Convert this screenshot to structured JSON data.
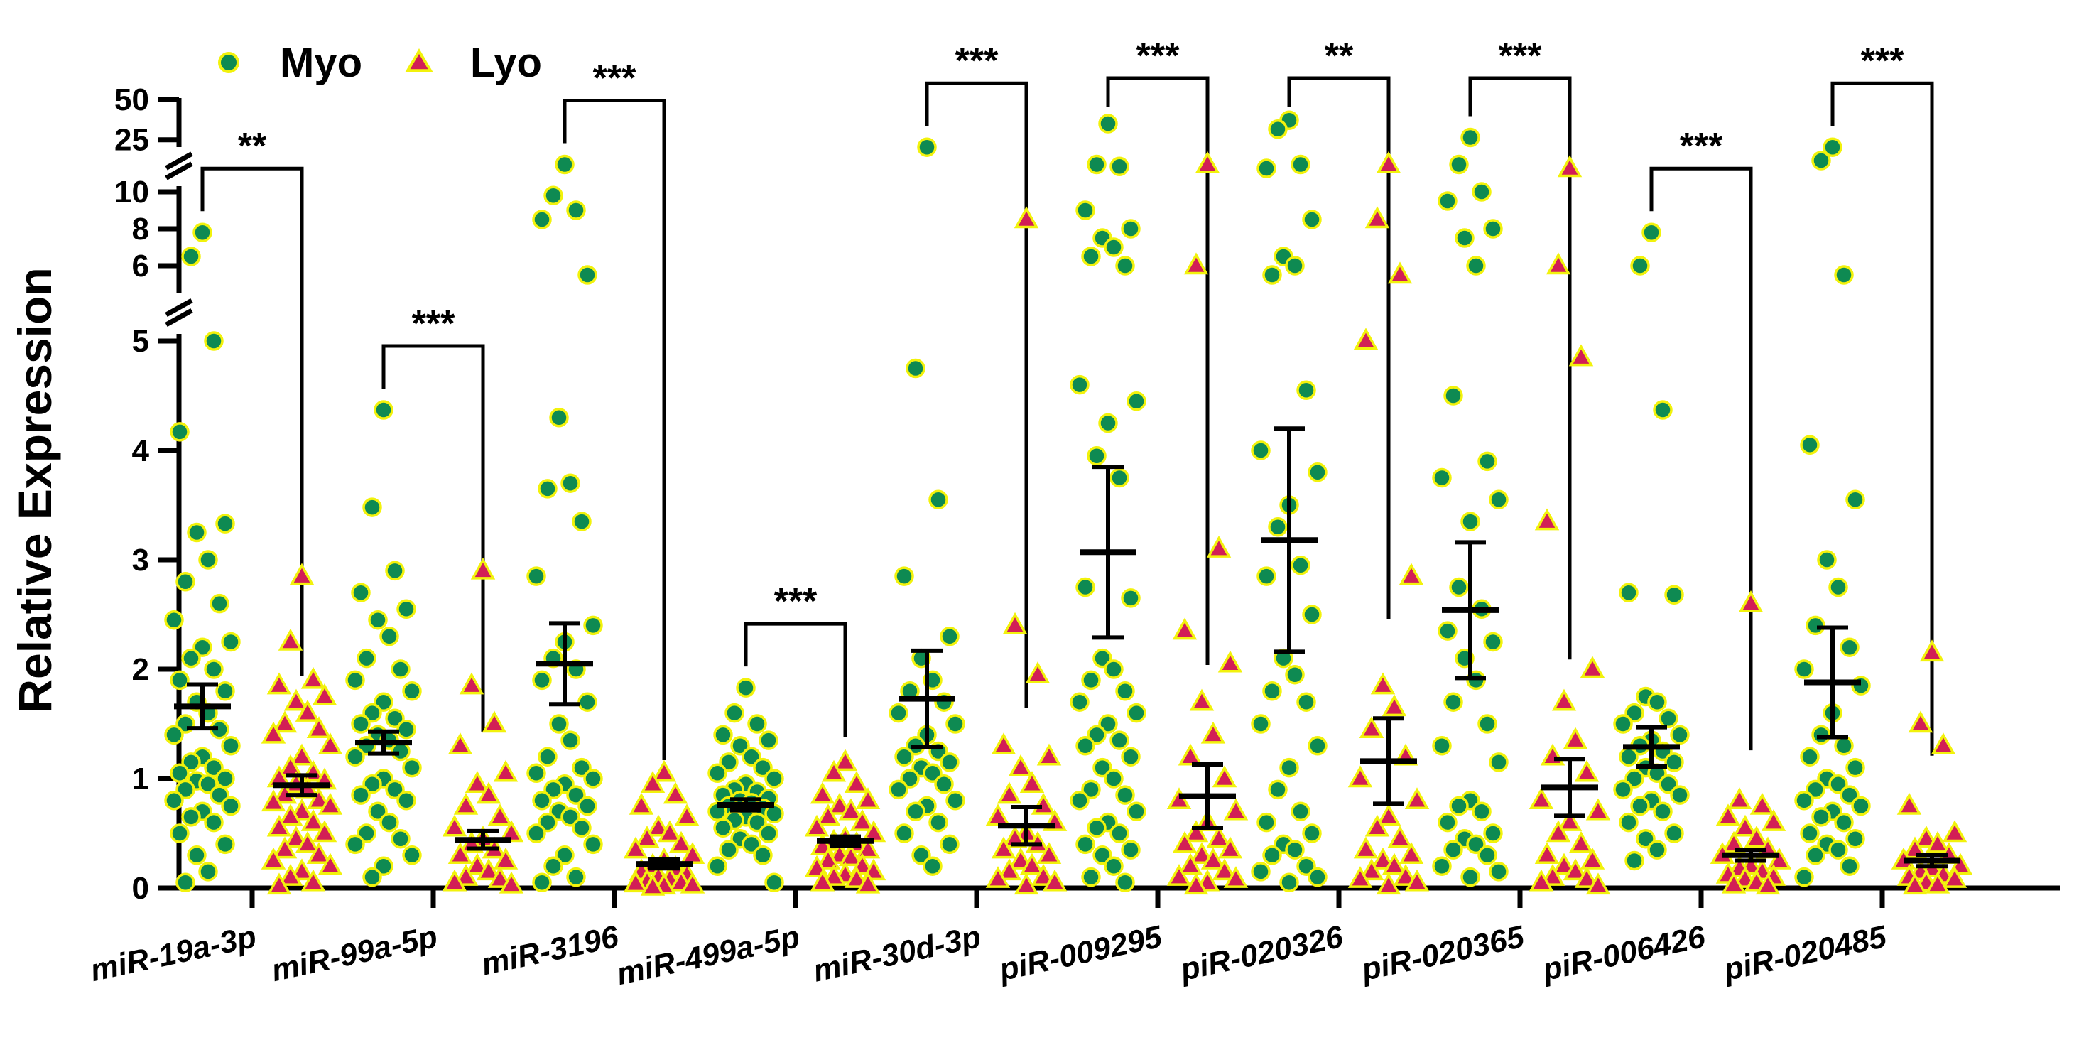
{
  "chart_data": {
    "type": "scatter",
    "subtype": "grouped dot plot with mean and SEM error bars, broken y-axis",
    "title": "",
    "xlabel": "",
    "ylabel": "Relative Expression",
    "ylim": [
      0,
      50
    ],
    "y_axis_segments": [
      {
        "range": [
          0,
          5
        ],
        "ticks": [
          0,
          1,
          2,
          3,
          4,
          5
        ]
      },
      {
        "range": [
          5,
          10
        ],
        "ticks": [
          6,
          8,
          10
        ]
      },
      {
        "range": [
          20,
          50
        ],
        "ticks": [
          25,
          50
        ]
      }
    ],
    "legend": {
      "position": "top-left",
      "entries": [
        {
          "name": "Myo",
          "marker": "circle",
          "fill": "#0E8A52",
          "edge": "#F2F20C"
        },
        {
          "name": "Lyo",
          "marker": "triangle",
          "fill": "#D21E56",
          "edge": "#F2F20C"
        }
      ]
    },
    "colors": {
      "myo_fill": "#0E8A52",
      "lyo_fill": "#D21E56",
      "marker_edge": "#F2F20C",
      "bars": "#000000"
    },
    "categories": [
      "miR-19a-3p",
      "miR-99a-5p",
      "miR-3196",
      "miR-499a-5p",
      "miR-30d-3p",
      "piR-009295",
      "piR-020326",
      "piR-020365",
      "piR-006426",
      "piR-020485"
    ],
    "significance": [
      "**",
      "***",
      "***",
      "***",
      "***",
      "***",
      "**",
      "***",
      "***",
      "***"
    ],
    "series": [
      {
        "name": "Myo",
        "mean": [
          1.66,
          1.33,
          2.05,
          0.76,
          1.73,
          3.07,
          3.18,
          2.54,
          1.29,
          1.88
        ],
        "sem": [
          0.2,
          0.1,
          0.37,
          0.05,
          0.44,
          0.78,
          1.02,
          0.62,
          0.18,
          0.5
        ],
        "values": [
          [
            7.8,
            6.5,
            5.0,
            4.17,
            3.33,
            3.25,
            3.0,
            2.8,
            2.6,
            2.45,
            2.25,
            2.2,
            2.1,
            2.0,
            1.9,
            1.8,
            1.7,
            1.6,
            1.5,
            1.45,
            1.4,
            1.3,
            1.2,
            1.15,
            1.1,
            1.05,
            1.0,
            0.98,
            0.95,
            0.9,
            0.85,
            0.8,
            0.75,
            0.7,
            0.65,
            0.6,
            0.5,
            0.4,
            0.3,
            0.15,
            0.05
          ],
          [
            4.37,
            3.48,
            2.9,
            2.7,
            2.55,
            2.45,
            2.3,
            2.1,
            2.0,
            1.9,
            1.8,
            1.7,
            1.6,
            1.55,
            1.5,
            1.45,
            1.4,
            1.35,
            1.3,
            1.25,
            1.2,
            1.1,
            1.0,
            0.95,
            0.9,
            0.85,
            0.8,
            0.7,
            0.6,
            0.5,
            0.45,
            0.4,
            0.3,
            0.2,
            0.1
          ],
          [
            17,
            9.8,
            9.0,
            8.5,
            5.5,
            4.3,
            3.7,
            3.65,
            3.35,
            2.85,
            2.4,
            2.25,
            2.1,
            2.0,
            1.9,
            1.7,
            1.5,
            1.35,
            1.2,
            1.1,
            1.05,
            1.0,
            0.95,
            0.9,
            0.85,
            0.8,
            0.75,
            0.7,
            0.65,
            0.6,
            0.55,
            0.5,
            0.4,
            0.3,
            0.2,
            0.1,
            0.05
          ],
          [
            1.83,
            1.6,
            1.5,
            1.4,
            1.35,
            1.3,
            1.2,
            1.15,
            1.1,
            1.05,
            1.0,
            0.95,
            0.9,
            0.88,
            0.85,
            0.82,
            0.8,
            0.78,
            0.75,
            0.73,
            0.7,
            0.68,
            0.65,
            0.62,
            0.6,
            0.55,
            0.5,
            0.45,
            0.4,
            0.35,
            0.3,
            0.2,
            0.05
          ],
          [
            22,
            4.75,
            3.55,
            2.85,
            2.3,
            2.1,
            1.9,
            1.8,
            1.7,
            1.6,
            1.5,
            1.4,
            1.3,
            1.25,
            1.2,
            1.15,
            1.1,
            1.05,
            1.0,
            0.95,
            0.9,
            0.8,
            0.75,
            0.7,
            0.6,
            0.5,
            0.4,
            0.3,
            0.2
          ],
          [
            33,
            17,
            16.5,
            9.0,
            8.0,
            7.5,
            7.0,
            6.5,
            6.0,
            4.6,
            4.45,
            4.25,
            3.95,
            3.75,
            2.75,
            2.65,
            2.1,
            2.0,
            1.9,
            1.8,
            1.7,
            1.6,
            1.5,
            1.4,
            1.35,
            1.3,
            1.2,
            1.1,
            1.0,
            0.9,
            0.85,
            0.8,
            0.7,
            0.6,
            0.55,
            0.5,
            0.4,
            0.35,
            0.3,
            0.2,
            0.1,
            0.05
          ],
          [
            35,
            30,
            17,
            16,
            8.5,
            6.5,
            6.0,
            5.5,
            4.55,
            4.0,
            3.8,
            3.5,
            3.3,
            2.95,
            2.85,
            2.5,
            2.1,
            1.95,
            1.8,
            1.7,
            1.5,
            1.3,
            1.1,
            0.9,
            0.7,
            0.6,
            0.5,
            0.4,
            0.35,
            0.3,
            0.2,
            0.15,
            0.1,
            0.05
          ],
          [
            26,
            17,
            10,
            9.5,
            8.0,
            7.5,
            6.0,
            4.5,
            3.9,
            3.75,
            3.55,
            3.35,
            2.75,
            2.55,
            2.35,
            2.25,
            2.1,
            1.9,
            1.7,
            1.5,
            1.3,
            1.15,
            0.8,
            0.75,
            0.7,
            0.6,
            0.5,
            0.45,
            0.4,
            0.35,
            0.3,
            0.2,
            0.15,
            0.1
          ],
          [
            7.8,
            6.0,
            4.37,
            2.7,
            2.68,
            1.75,
            1.7,
            1.6,
            1.55,
            1.5,
            1.4,
            1.35,
            1.3,
            1.25,
            1.2,
            1.15,
            1.1,
            1.05,
            1.0,
            0.95,
            0.9,
            0.85,
            0.8,
            0.75,
            0.7,
            0.6,
            0.5,
            0.45,
            0.35,
            0.25
          ],
          [
            22,
            18,
            5.5,
            4.05,
            3.55,
            3.0,
            2.75,
            2.4,
            2.2,
            2.0,
            1.85,
            1.6,
            1.4,
            1.3,
            1.2,
            1.1,
            1.0,
            0.95,
            0.9,
            0.85,
            0.8,
            0.75,
            0.7,
            0.65,
            0.6,
            0.5,
            0.45,
            0.4,
            0.35,
            0.3,
            0.2,
            0.1
          ]
        ]
      },
      {
        "name": "Lyo",
        "mean": [
          0.94,
          0.44,
          0.22,
          0.43,
          0.57,
          0.84,
          1.16,
          0.92,
          0.3,
          0.25
        ],
        "sem": [
          0.09,
          0.08,
          0.04,
          0.04,
          0.17,
          0.29,
          0.39,
          0.26,
          0.05,
          0.05
        ],
        "values": [
          [
            2.85,
            2.25,
            1.9,
            1.85,
            1.75,
            1.7,
            1.6,
            1.5,
            1.45,
            1.4,
            1.3,
            1.2,
            1.1,
            1.05,
            1.0,
            0.98,
            0.95,
            0.9,
            0.85,
            0.8,
            0.78,
            0.75,
            0.7,
            0.65,
            0.6,
            0.55,
            0.5,
            0.45,
            0.4,
            0.35,
            0.3,
            0.25,
            0.2,
            0.15,
            0.1,
            0.05,
            0.02
          ],
          [
            2.9,
            1.85,
            1.5,
            1.3,
            1.05,
            0.95,
            0.85,
            0.75,
            0.65,
            0.55,
            0.5,
            0.45,
            0.4,
            0.35,
            0.3,
            0.25,
            0.2,
            0.15,
            0.1,
            0.08,
            0.05,
            0.03
          ],
          [
            1.05,
            0.95,
            0.85,
            0.75,
            0.65,
            0.55,
            0.5,
            0.45,
            0.4,
            0.35,
            0.3,
            0.25,
            0.2,
            0.18,
            0.15,
            0.12,
            0.1,
            0.08,
            0.06,
            0.05,
            0.04,
            0.03,
            0.02,
            0.01
          ],
          [
            1.15,
            1.05,
            0.95,
            0.85,
            0.8,
            0.75,
            0.7,
            0.65,
            0.6,
            0.55,
            0.5,
            0.45,
            0.42,
            0.4,
            0.38,
            0.35,
            0.3,
            0.28,
            0.25,
            0.2,
            0.18,
            0.15,
            0.12,
            0.1,
            0.08,
            0.05,
            0.03
          ],
          [
            8.5,
            2.4,
            1.95,
            1.3,
            1.2,
            1.1,
            0.95,
            0.85,
            0.75,
            0.65,
            0.6,
            0.5,
            0.45,
            0.4,
            0.35,
            0.3,
            0.25,
            0.2,
            0.15,
            0.1,
            0.08,
            0.05,
            0.02
          ],
          [
            17,
            6.0,
            3.1,
            2.35,
            2.05,
            1.7,
            1.4,
            1.2,
            1.0,
            0.8,
            0.7,
            0.6,
            0.5,
            0.45,
            0.4,
            0.35,
            0.3,
            0.25,
            0.2,
            0.15,
            0.1,
            0.08,
            0.05,
            0.02
          ],
          [
            17,
            8.5,
            5.5,
            5.0,
            2.85,
            1.85,
            1.65,
            1.45,
            1.2,
            1.0,
            0.8,
            0.65,
            0.55,
            0.45,
            0.35,
            0.3,
            0.25,
            0.2,
            0.15,
            0.1,
            0.08,
            0.05,
            0.02
          ],
          [
            16,
            6.0,
            4.85,
            3.35,
            2.0,
            1.7,
            1.35,
            1.2,
            1.05,
            0.8,
            0.7,
            0.6,
            0.5,
            0.4,
            0.3,
            0.25,
            0.2,
            0.15,
            0.1,
            0.08,
            0.05,
            0.02
          ],
          [
            2.6,
            0.8,
            0.75,
            0.65,
            0.6,
            0.55,
            0.45,
            0.4,
            0.35,
            0.3,
            0.25,
            0.2,
            0.18,
            0.15,
            0.12,
            0.1,
            0.08,
            0.05,
            0.03,
            0.02
          ],
          [
            2.15,
            1.5,
            1.3,
            0.75,
            0.5,
            0.45,
            0.4,
            0.35,
            0.3,
            0.25,
            0.2,
            0.18,
            0.15,
            0.12,
            0.1,
            0.08,
            0.05,
            0.03,
            0.02
          ]
        ]
      }
    ]
  }
}
